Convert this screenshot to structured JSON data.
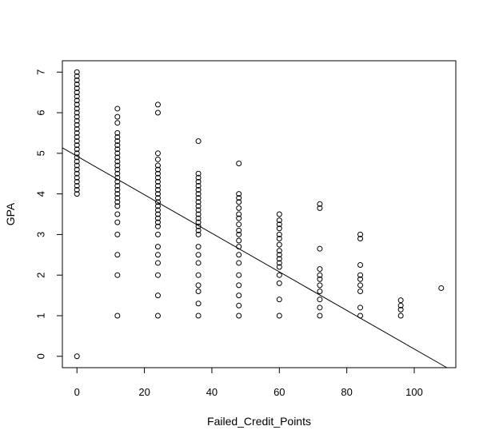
{
  "chart_data": {
    "type": "scatter",
    "title": "",
    "xlabel": "Failed_Credit_Points",
    "ylabel": "GPA",
    "xlim": [
      -4.32,
      112.32
    ],
    "ylim": [
      -0.28,
      7.28
    ],
    "xticks": [
      0,
      20,
      40,
      60,
      80,
      100
    ],
    "yticks": [
      0,
      1,
      2,
      3,
      4,
      5,
      6,
      7
    ],
    "grid": false,
    "legend": "none",
    "regression_line": {
      "intercept": 4.93,
      "slope": -0.0475
    },
    "point_groups": [
      {
        "x": 0,
        "y": [
          0,
          4.0,
          4.1,
          4.2,
          4.3,
          4.4,
          4.5,
          4.6,
          4.7,
          4.8,
          4.9,
          5.0,
          5.1,
          5.2,
          5.3,
          5.4,
          5.5,
          5.6,
          5.7,
          5.8,
          5.9,
          6.0,
          6.1,
          6.2,
          6.3,
          6.4,
          6.5,
          6.6,
          6.7,
          6.8,
          6.9,
          7.0
        ]
      },
      {
        "x": 12,
        "y": [
          1.0,
          2.0,
          2.5,
          3.0,
          3.3,
          3.5,
          3.7,
          3.8,
          3.9,
          4.0,
          4.1,
          4.2,
          4.3,
          4.4,
          4.5,
          4.6,
          4.7,
          4.8,
          4.9,
          5.0,
          5.1,
          5.2,
          5.3,
          5.4,
          5.5,
          5.75,
          5.9,
          6.1
        ]
      },
      {
        "x": 24,
        "y": [
          1.0,
          1.5,
          2.0,
          2.3,
          2.5,
          2.7,
          3.0,
          3.2,
          3.3,
          3.4,
          3.5,
          3.6,
          3.7,
          3.8,
          3.9,
          4.0,
          4.1,
          4.2,
          4.3,
          4.4,
          4.5,
          4.6,
          4.7,
          4.85,
          5.0,
          6.0,
          6.2
        ]
      },
      {
        "x": 36,
        "y": [
          1.0,
          1.3,
          1.6,
          1.75,
          2.0,
          2.3,
          2.5,
          2.7,
          3.0,
          3.1,
          3.2,
          3.3,
          3.4,
          3.5,
          3.6,
          3.7,
          3.8,
          3.9,
          4.0,
          4.1,
          4.2,
          4.3,
          4.4,
          4.5,
          5.3
        ]
      },
      {
        "x": 48,
        "y": [
          1.0,
          1.25,
          1.5,
          1.75,
          2.0,
          2.3,
          2.5,
          2.7,
          2.85,
          3.0,
          3.1,
          3.25,
          3.4,
          3.5,
          3.65,
          3.8,
          3.9,
          4.0,
          4.75
        ]
      },
      {
        "x": 60,
        "y": [
          1.0,
          1.4,
          1.8,
          2.0,
          2.2,
          2.3,
          2.4,
          2.5,
          2.6,
          2.75,
          2.9,
          3.0,
          3.15,
          3.25,
          3.35,
          3.5
        ]
      },
      {
        "x": 72,
        "y": [
          1.0,
          1.2,
          1.4,
          1.6,
          1.75,
          1.9,
          2.0,
          2.15,
          2.65,
          3.65,
          3.75
        ]
      },
      {
        "x": 84,
        "y": [
          1.0,
          1.2,
          1.6,
          1.75,
          1.9,
          2.0,
          2.25,
          2.9,
          3.0
        ]
      },
      {
        "x": 96,
        "y": [
          1.0,
          1.15,
          1.25,
          1.38
        ]
      },
      {
        "x": 108,
        "y": [
          1.68
        ]
      }
    ]
  }
}
